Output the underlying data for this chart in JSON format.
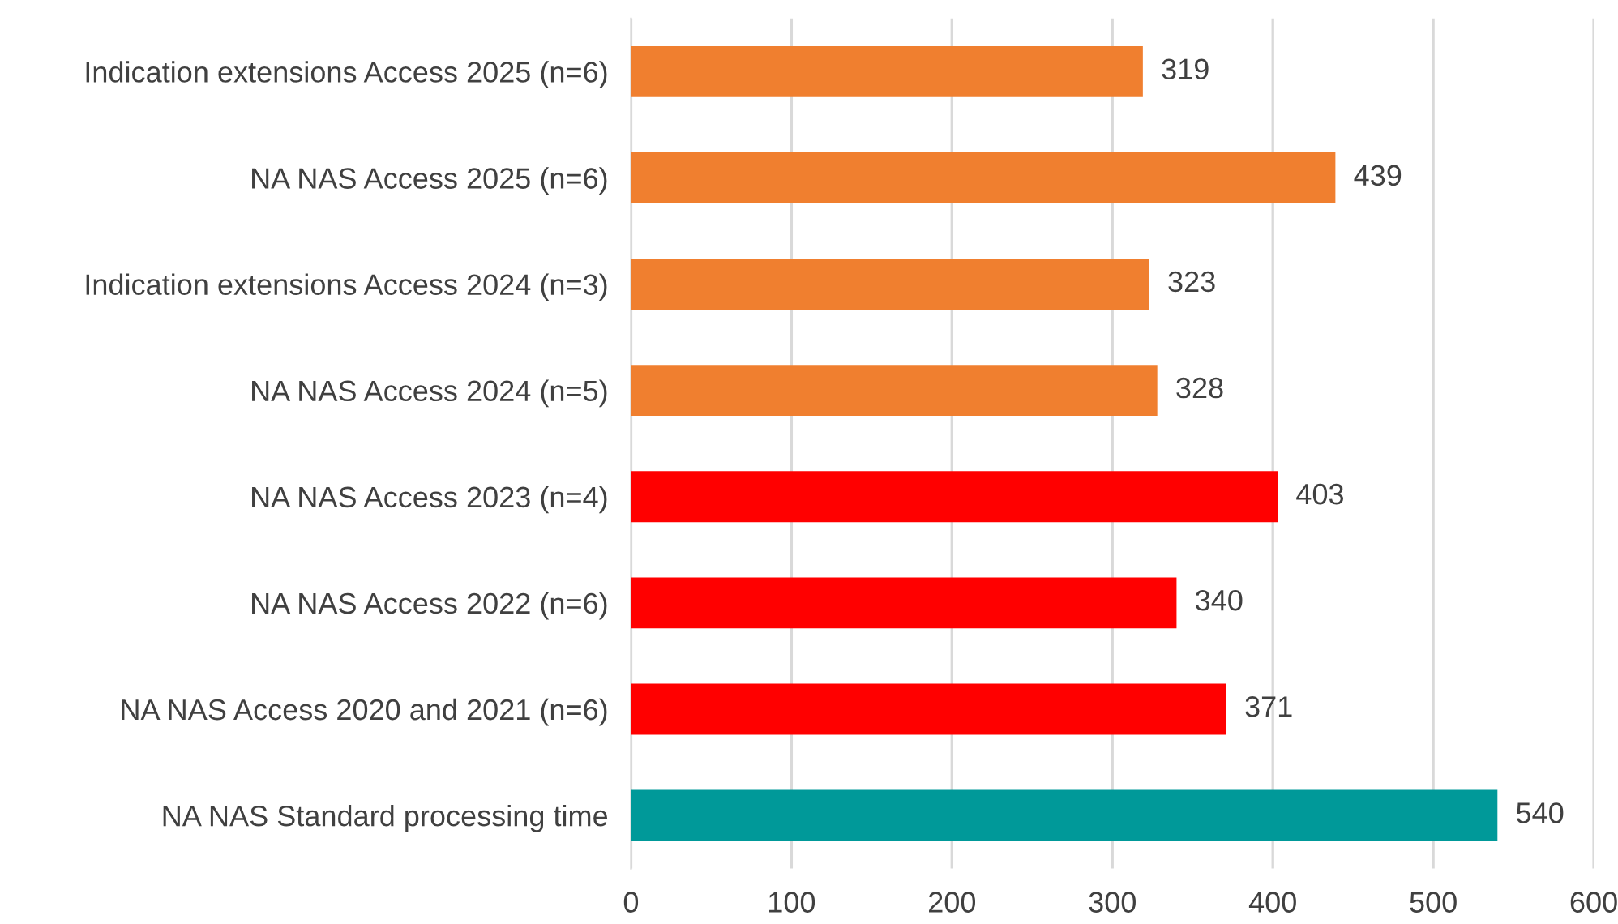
{
  "chart_data": {
    "type": "bar",
    "orientation": "horizontal",
    "categories": [
      "Indication extensions Access 2025 (n=6)",
      "NA NAS Access 2025 (n=6)",
      "Indication extensions Access 2024 (n=3)",
      "NA NAS Access 2024 (n=5)",
      "NA NAS Access 2023 (n=4)",
      "NA NAS Access 2022 (n=6)",
      "NA NAS Access 2020 and 2021 (n=6)",
      "NA NAS Standard processing time"
    ],
    "values": [
      319,
      439,
      323,
      328,
      403,
      340,
      371,
      540
    ],
    "colors": [
      "#f07f2f",
      "#f07f2f",
      "#f07f2f",
      "#f07f2f",
      "#ff0000",
      "#ff0000",
      "#ff0000",
      "#009999"
    ],
    "xlim": [
      0,
      600
    ],
    "xticks": [
      0,
      100,
      200,
      300,
      400,
      500,
      600
    ],
    "grid": "x",
    "data_labels": true
  }
}
